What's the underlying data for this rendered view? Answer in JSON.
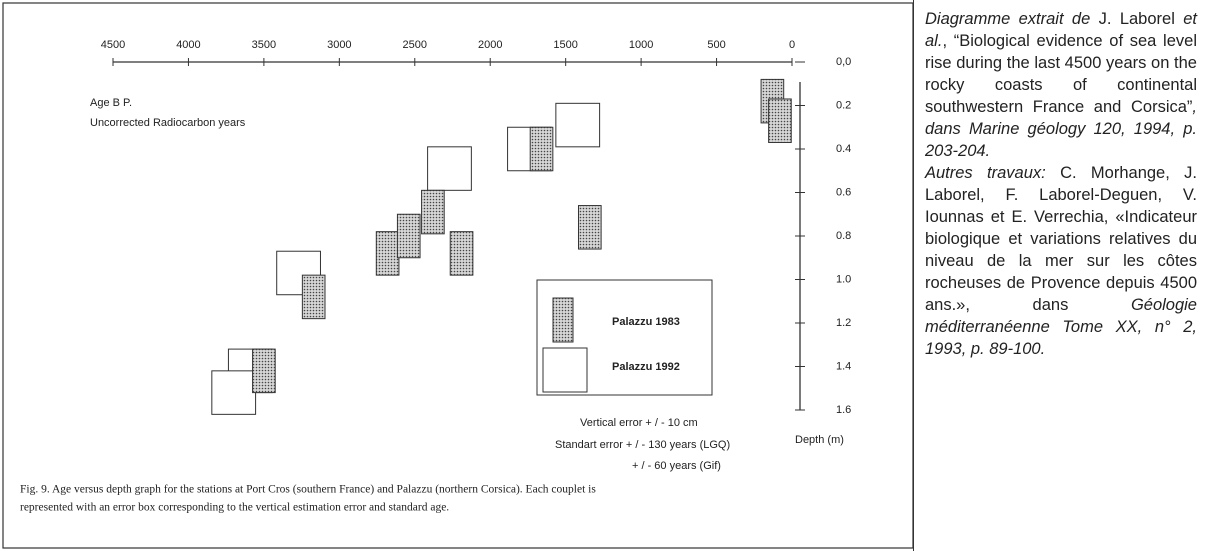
{
  "chart_data": {
    "type": "errorbox",
    "xlabel": "Age B P.",
    "xlabel2": "Uncorrected Radiocarbon years",
    "ylabel": "Depth (m)",
    "xlim": [
      4500,
      0
    ],
    "xticks": [
      4500,
      4000,
      3500,
      3000,
      2500,
      2000,
      1500,
      1000,
      500,
      0
    ],
    "ylim": [
      0,
      1.6
    ],
    "yticks": [
      {
        "value": 0,
        "label": "0,0"
      },
      0.2,
      0.4,
      0.6,
      0.8,
      {
        "value": 1.0,
        "label": "1.0"
      },
      1.2,
      1.4,
      1.6
    ],
    "series": [
      {
        "name": "Palazzu 1983",
        "style": "dotted",
        "x": [
          130,
          80,
          1660,
          1340,
          2680,
          2540,
          2380,
          2190,
          3170,
          3500
        ],
        "values": [
          0.18,
          0.27,
          0.4,
          0.76,
          0.88,
          0.8,
          0.69,
          0.88,
          1.08,
          1.42
        ],
        "xerr": 75,
        "yerr": 0.1
      },
      {
        "name": "Palazzu 1992",
        "style": "open",
        "x": [
          1420,
          1740,
          2270,
          3270,
          3590,
          3700
        ],
        "values": [
          0.29,
          0.4,
          0.49,
          0.97,
          1.42,
          1.52
        ],
        "xerr": 145,
        "yerr": 0.1
      }
    ],
    "notes": [
      "Vertical error   + / - 10 cm",
      "Standart error   + / - 130 years (LGQ)",
      "+ / -  60 years (Gif)"
    ]
  },
  "caption": [
    "Fig. 9. Age versus depth graph for the stations at Port Cros (southern France) and Palazzu (northern Corsica). Each couplet is",
    "represented with an error box corresponding to the vertical estimation error and standard age."
  ],
  "sidebar": {
    "runs": [
      "Diagramme extrait de",
      " J. Laborel ",
      "et al.",
      ", “Biological evidence of sea level rise during the last 4500 years on the rocky coasts of continental southwestern France and Corsica”",
      ", dans Marine géology 120, 1994, p. 203-204.",
      "Autres travaux:",
      " C. Morhange, J. Laborel, F. Laborel-Deguen, V. Iounnas et E. Verrechia, «Indicateur biologique et variations relatives du niveau de la mer sur les côtes rocheuses de Provence depuis 4500 ans.», dans ",
      "Géologie méditerranéenne Tome XX, n° 2, 1993, p. 89-100."
    ]
  }
}
